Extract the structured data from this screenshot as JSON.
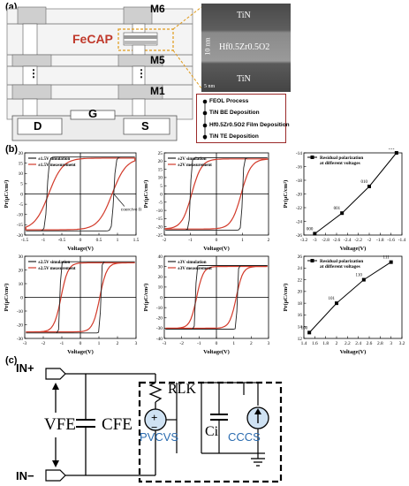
{
  "panels": {
    "a": "(a)",
    "b": "(b)",
    "c": "(c)"
  },
  "stack": {
    "labels": {
      "m6": "M6",
      "m5": "M5",
      "m1": "M1",
      "fecap": "FeCAP",
      "d": "D",
      "g": "G",
      "s": "S",
      "dots": "⋮"
    }
  },
  "tem": {
    "top": "TiN",
    "middle": "Hf0.5Zr0.5O2",
    "bottom": "TiN",
    "scale": "10 nm",
    "scalebar": "5 nm"
  },
  "process": {
    "steps": [
      "FEOL Process",
      "TiN BE Deposition",
      "Hf0.5Zr0.5O2 Film Deposition",
      "TiN TE Deposition"
    ]
  },
  "charts": [
    {
      "id": "pv-1p5",
      "chart_data": {
        "type": "line",
        "xlabel": "Voltage(V)",
        "ylabel": "Pr(μC/cm²)",
        "xlim": [
          -1.5,
          1.5
        ],
        "ylim": [
          -20,
          20
        ],
        "xticks": [
          -1.5,
          -1.0,
          -0.5,
          0.0,
          0.5,
          1.0,
          1.5
        ],
        "yticks": [
          -20,
          -15,
          -10,
          -5,
          0,
          5,
          10,
          15,
          20
        ],
        "series": [
          {
            "name": "±1.5V simulation",
            "color": "#222222"
          },
          {
            "name": "±1.5V measurement",
            "color": "#d23a2a"
          }
        ],
        "annotation": "coercive field",
        "vc": 0.9,
        "ps": 18
      }
    },
    {
      "id": "pv-2",
      "chart_data": {
        "type": "line",
        "xlabel": "Voltage(V)",
        "ylabel": "Pr(μC/cm²)",
        "xlim": [
          -2,
          2
        ],
        "ylim": [
          -25,
          25
        ],
        "xticks": [
          -2,
          -1,
          0,
          1,
          2
        ],
        "yticks": [
          -25,
          -20,
          -15,
          -10,
          -5,
          0,
          5,
          10,
          15,
          20,
          25
        ],
        "series": [
          {
            "name": "±2V simulation",
            "color": "#222222"
          },
          {
            "name": "±2V measurement",
            "color": "#d23a2a"
          }
        ],
        "vc": 1.0,
        "ps": 22
      }
    },
    {
      "id": "pr-neg",
      "chart_data": {
        "type": "line",
        "xlabel": "Voltage(V)",
        "ylabel": "Pr(μC/cm²)",
        "xlim": [
          -3.2,
          -1.4
        ],
        "ylim": [
          -26,
          -14
        ],
        "xticks": [
          -3.2,
          -3.0,
          -2.8,
          -2.6,
          -2.4,
          -2.2,
          -2.0,
          -1.8,
          -1.6,
          -1.4
        ],
        "yticks": [
          -26,
          -24,
          -22,
          -20,
          -18,
          -16,
          -14
        ],
        "series": [
          {
            "name": "Residual polarization at different voltages",
            "x": [
              -3.0,
              -2.5,
              -2.0,
              -1.5
            ],
            "y": [
              -25.8,
              -22.8,
              -18.9,
              -14.0
            ]
          }
        ],
        "point_labels": [
          "000",
          "001",
          "010",
          "011"
        ]
      }
    },
    {
      "id": "pv-2p5",
      "chart_data": {
        "type": "line",
        "xlabel": "Voltage(V)",
        "ylabel": "Pr(μC/cm²)",
        "xlim": [
          -3,
          3
        ],
        "ylim": [
          -30,
          30
        ],
        "xticks": [
          -3,
          -2,
          -1,
          0,
          1,
          2,
          3
        ],
        "yticks": [
          -30,
          -20,
          -10,
          0,
          10,
          20,
          30
        ],
        "series": [
          {
            "name": "±2.5V simulation",
            "color": "#222222"
          },
          {
            "name": "±2.5V measurement",
            "color": "#d23a2a"
          }
        ],
        "vc": 1.1,
        "ps": 26
      }
    },
    {
      "id": "pv-3",
      "chart_data": {
        "type": "line",
        "xlabel": "Voltage(V)",
        "ylabel": "Pr(μC/cm²)",
        "xlim": [
          -3,
          3
        ],
        "ylim": [
          -40,
          40
        ],
        "xticks": [
          -3,
          -2,
          -1,
          0,
          1,
          2,
          3
        ],
        "yticks": [
          -40,
          -30,
          -20,
          -10,
          0,
          10,
          20,
          30,
          40
        ],
        "series": [
          {
            "name": "±3V simulation",
            "color": "#222222"
          },
          {
            "name": "±3V measurement",
            "color": "#d23a2a"
          }
        ],
        "vc": 1.2,
        "ps": 31
      }
    },
    {
      "id": "pr-pos",
      "chart_data": {
        "type": "line",
        "xlabel": "Voltage(V)",
        "ylabel": "Pr(μC/cm²)",
        "xlim": [
          1.4,
          3.2
        ],
        "ylim": [
          12,
          26
        ],
        "xticks": [
          1.4,
          1.6,
          1.8,
          2.0,
          2.2,
          2.4,
          2.6,
          2.8,
          3.0,
          3.2
        ],
        "yticks": [
          12,
          14,
          16,
          18,
          20,
          22,
          24,
          26
        ],
        "series": [
          {
            "name": "Residual polarization at different voltages",
            "x": [
              1.5,
              2.0,
              2.5,
              3.0
            ],
            "y": [
              13.0,
              18.0,
              22.0,
              25.0
            ]
          }
        ],
        "point_labels": [
          "100",
          "101",
          "110",
          "111"
        ]
      }
    }
  ],
  "circuit": {
    "in_plus": "IN+",
    "in_minus": "IN−",
    "vfe": "VFE",
    "cfe": "CFE",
    "rlk": "RLK",
    "ci": "Ci",
    "pvcvs": "PVCVS",
    "ccvs": "CCCS",
    "plus": "+",
    "minus": "−"
  }
}
